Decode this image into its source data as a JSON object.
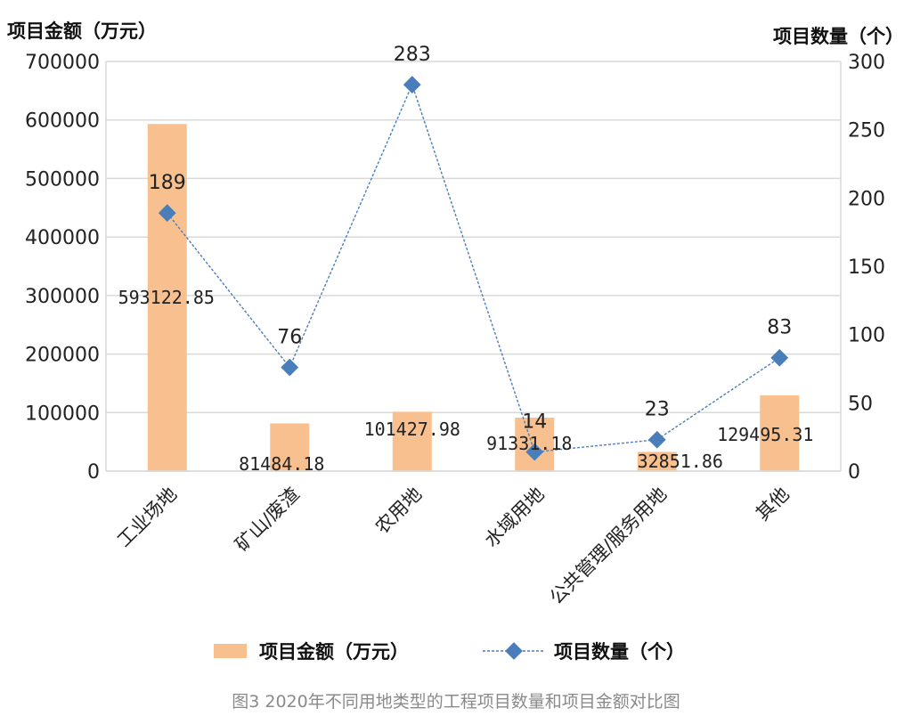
{
  "chart_data": {
    "type": "bar",
    "title": "",
    "caption": "图3  2020年不同用地类型的工程项目数量和项目金额对比图",
    "categories": [
      "工业场地",
      "矿山/废渣",
      "农用地",
      "水域用地",
      "公共管理/服务用地",
      "其他"
    ],
    "y_left": {
      "label": "项目金额（万元）",
      "ylim": [
        0,
        700000
      ],
      "ticks": [
        "0",
        "100000",
        "200000",
        "300000",
        "400000",
        "500000",
        "600000",
        "700000"
      ]
    },
    "y_right": {
      "label": "项目数量（个）",
      "ylim": [
        0,
        300
      ],
      "ticks": [
        "0",
        "50",
        "100",
        "150",
        "200",
        "250",
        "300"
      ]
    },
    "grid": true,
    "legend_position": "bottom",
    "series": [
      {
        "name": "项目金额（万元）",
        "type": "bar",
        "axis": "left",
        "color": "#f8c08f",
        "values": [
          593122.85,
          81484.18,
          101427.98,
          91331.18,
          32851.86,
          129495.31
        ],
        "labels": [
          "593122.85",
          "81484.18",
          "101427.98",
          "91331.18",
          "32851.86",
          "129495.31"
        ]
      },
      {
        "name": "项目数量（个）",
        "type": "line",
        "axis": "right",
        "color": "#4a7ebb",
        "values": [
          189,
          76,
          283,
          14,
          23,
          83
        ],
        "labels": [
          "189",
          "76",
          "283",
          "14",
          "23",
          "83"
        ]
      }
    ]
  }
}
